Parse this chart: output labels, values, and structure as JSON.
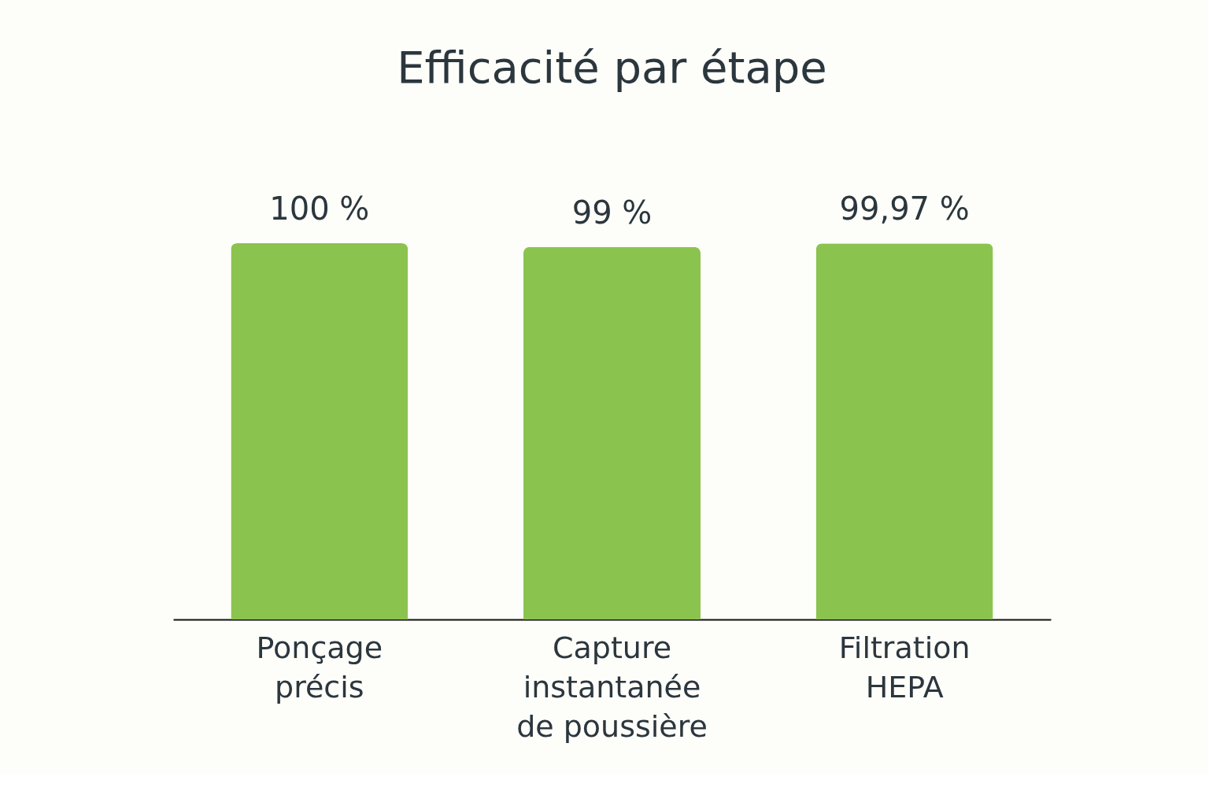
{
  "chart_data": {
    "type": "bar",
    "title": "Efficacité par étape",
    "categories": [
      "Ponçage précis",
      "Capture instantanée de poussière",
      "Filtration HEPA"
    ],
    "values": [
      100,
      99,
      99.97
    ],
    "value_labels": [
      "100 %",
      "99 %",
      "99,97 %"
    ],
    "color": "#8bc34f"
  }
}
